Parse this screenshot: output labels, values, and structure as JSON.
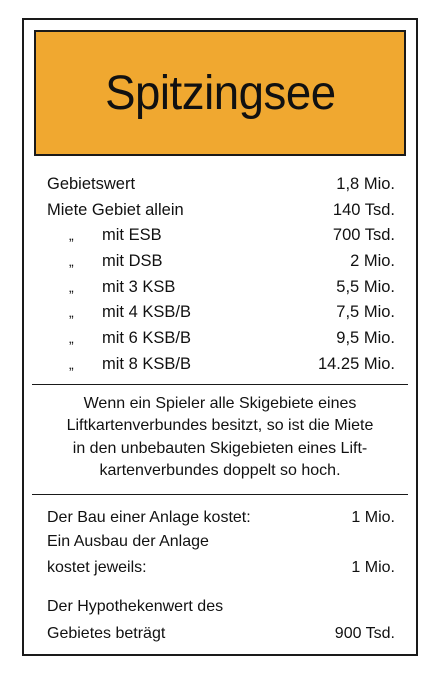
{
  "title": "Spitzingsee",
  "colors": {
    "header_bg": "#f0a830",
    "border": "#1a1a1a"
  },
  "rent_rows": [
    {
      "mark": "",
      "label": "Gebietswert",
      "value": "1,8 Mio."
    },
    {
      "mark": "",
      "label": "Miete Gebiet allein",
      "value": "140 Tsd."
    },
    {
      "mark": "„",
      "label": "mit ESB",
      "value": "700 Tsd."
    },
    {
      "mark": "„",
      "label": "mit DSB",
      "value": "2 Mio."
    },
    {
      "mark": "„",
      "label": "mit 3 KSB",
      "value": "5,5 Mio."
    },
    {
      "mark": "„",
      "label": "mit 4 KSB/B",
      "value": "7,5 Mio."
    },
    {
      "mark": "„",
      "label": "mit 6 KSB/B",
      "value": "9,5 Mio."
    },
    {
      "mark": "„",
      "label": "mit 8 KSB/B",
      "value": "14.25 Mio."
    }
  ],
  "note_lines": [
    "Wenn ein Spieler alle Skigebiete eines",
    "Liftkartenverbundes besitzt, so ist die Miete",
    "in den unbebauten Skigebieten eines Lift-",
    "kartenverbundes doppelt so hoch."
  ],
  "costs": {
    "build_label": "Der Bau einer Anlage kostet:",
    "build_value": "1 Mio.",
    "upgrade_label_1": "Ein Ausbau der Anlage",
    "upgrade_label_2": "kostet jeweils:",
    "upgrade_value": "1 Mio.",
    "mortgage_label_1": "Der Hypothekenwert des",
    "mortgage_label_2": "Gebietes beträgt",
    "mortgage_value": "900 Tsd."
  }
}
